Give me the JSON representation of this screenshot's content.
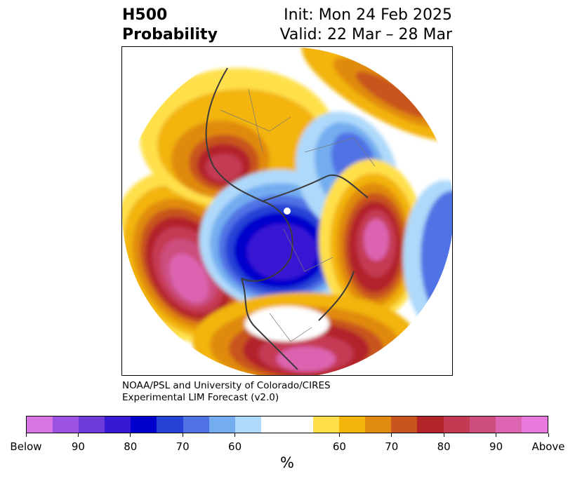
{
  "header": {
    "title_line1": "H500",
    "title_line2": "Probability",
    "init_text": "Init: Mon 24 Feb 2025",
    "valid_text": "Valid: 22 Mar – 28 Mar"
  },
  "credit": {
    "line1": "NOAA/PSL and University of Colorado/CIRES",
    "line2": "Experimental LIM Forecast (v2.0)"
  },
  "colorbar": {
    "colors": [
      "#d874e4",
      "#9d53e2",
      "#6c3ad8",
      "#3718d3",
      "#0000cc",
      "#2543d6",
      "#4f72e4",
      "#73adf0",
      "#aed9fa",
      "#ffffff",
      "#ffe04b",
      "#f2b40b",
      "#e08a10",
      "#c8541e",
      "#b2232a",
      "#c43a52",
      "#cc4d7e",
      "#dc64b0",
      "#e879dd"
    ],
    "tick_labels": [
      "Below",
      "90",
      "80",
      "70",
      "60",
      "60",
      "70",
      "80",
      "90",
      "Above"
    ],
    "units": "%"
  }
}
